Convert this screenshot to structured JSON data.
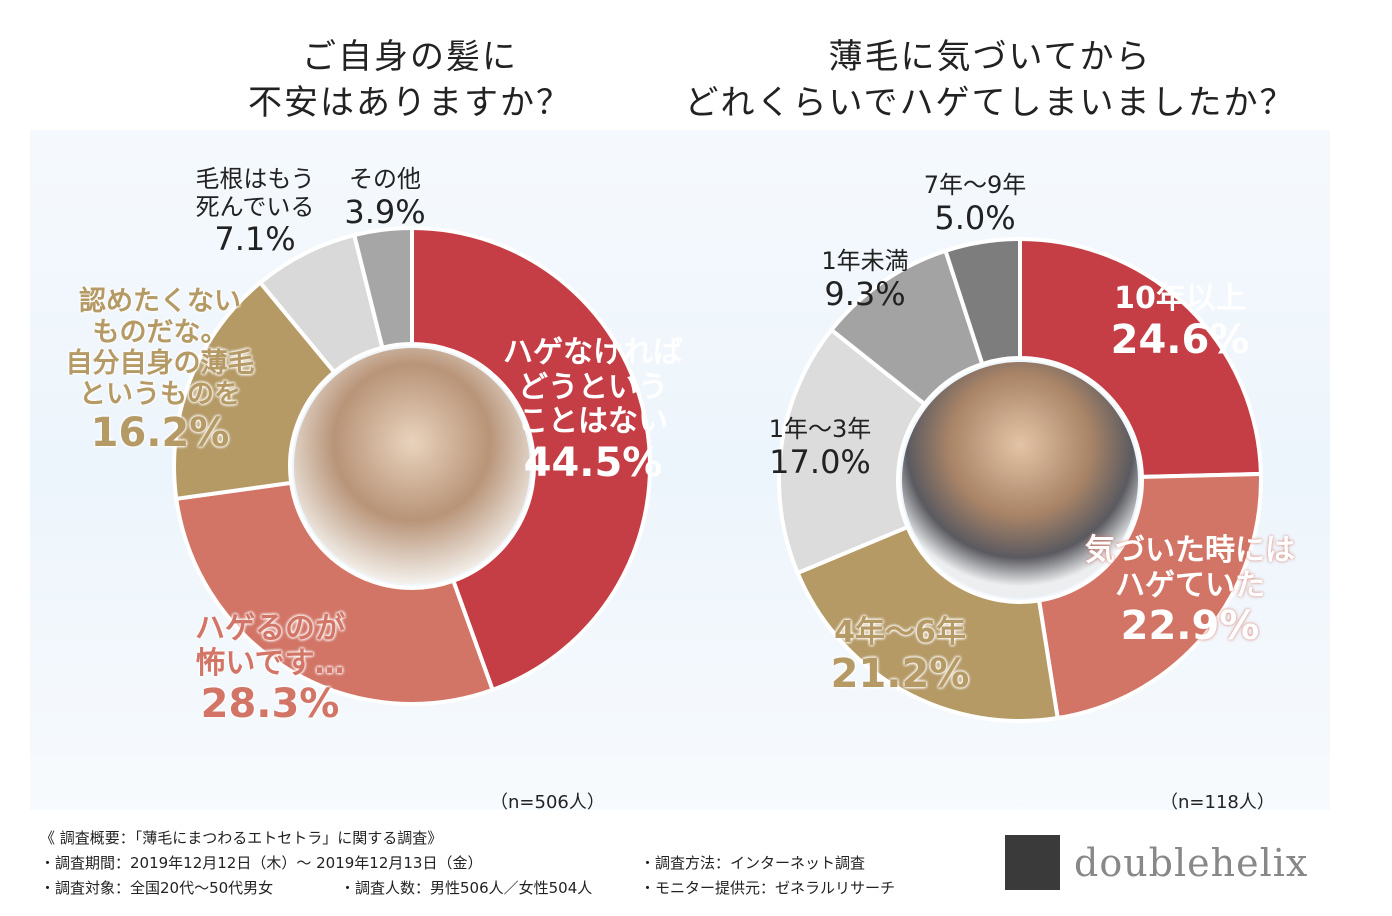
{
  "chart_data": [
    {
      "type": "pie",
      "donut": true,
      "title": "ご自身の髪に 不安はありますか？",
      "title_lines": [
        "ご自身の髪に",
        "不安はありますか？"
      ],
      "sample": "（n=506人）",
      "slices": [
        {
          "label": "ハゲなければどうということはない",
          "lines": [
            "ハゲなければ",
            "どうという",
            "ことはない"
          ],
          "value": 44.5,
          "display": "44.5%",
          "color": "#c53d45"
        },
        {
          "label": "ハゲるのが怖いです…",
          "lines": [
            "ハゲるのが",
            "怖いです…"
          ],
          "value": 28.3,
          "display": "28.3%",
          "color": "#d27566"
        },
        {
          "label": "認めたくないものだな。自分自身の薄毛というものを",
          "lines": [
            "認めたくない",
            "ものだな。",
            "自分自身の薄毛",
            "というものを"
          ],
          "value": 16.2,
          "display": "16.2%",
          "color": "#b59a66"
        },
        {
          "label": "毛根はもう死んでいる",
          "lines": [
            "毛根はもう",
            "死んでいる"
          ],
          "value": 7.1,
          "display": "7.1%",
          "color": "#d9d9d9"
        },
        {
          "label": "その他",
          "lines": [
            "その他"
          ],
          "value": 3.9,
          "display": "3.9%",
          "color": "#a6a6a6"
        }
      ]
    },
    {
      "type": "pie",
      "donut": true,
      "title": "薄毛に気づいてから どれくらいでハゲてしまいましたか？",
      "title_lines": [
        "薄毛に気づいてから",
        "どれくらいでハゲてしまいましたか？"
      ],
      "sample": "（n=118人）",
      "slices": [
        {
          "label": "10年以上",
          "lines": [
            "10年以上"
          ],
          "value": 24.6,
          "display": "24.6%",
          "color": "#c53d45"
        },
        {
          "label": "気づいた時にはハゲていた",
          "lines": [
            "気づいた時には",
            "ハゲていた"
          ],
          "value": 22.9,
          "display": "22.9%",
          "color": "#d27566"
        },
        {
          "label": "4年〜6年",
          "lines": [
            "4年〜6年"
          ],
          "value": 21.2,
          "display": "21.2%",
          "color": "#b59a66"
        },
        {
          "label": "1年〜3年",
          "lines": [
            "1年〜3年"
          ],
          "value": 17.0,
          "display": "17.0%",
          "color": "#dcdcdc"
        },
        {
          "label": "1年未満",
          "lines": [
            "1年未満"
          ],
          "value": 9.3,
          "display": "9.3%",
          "color": "#a3a3a3"
        },
        {
          "label": "7年〜9年",
          "lines": [
            "7年〜9年"
          ],
          "value": 5.0,
          "display": "5.0%",
          "color": "#7d7d7d"
        }
      ]
    }
  ],
  "footer": {
    "heading": "《 調査概要：「薄毛にまつわるエトセトラ」に関する調査》",
    "period": "・調査期間：2019年12月12日（木）〜 2019年12月13日（金）",
    "method": "・調査方法：インターネット調査",
    "target": "・調査対象：全国20代〜50代男女",
    "count": "・調査人数：男性506人／女性504人",
    "monitor": "・モニター提供元：ゼネラルリサーチ"
  },
  "logo": {
    "text": "doublehelix"
  }
}
